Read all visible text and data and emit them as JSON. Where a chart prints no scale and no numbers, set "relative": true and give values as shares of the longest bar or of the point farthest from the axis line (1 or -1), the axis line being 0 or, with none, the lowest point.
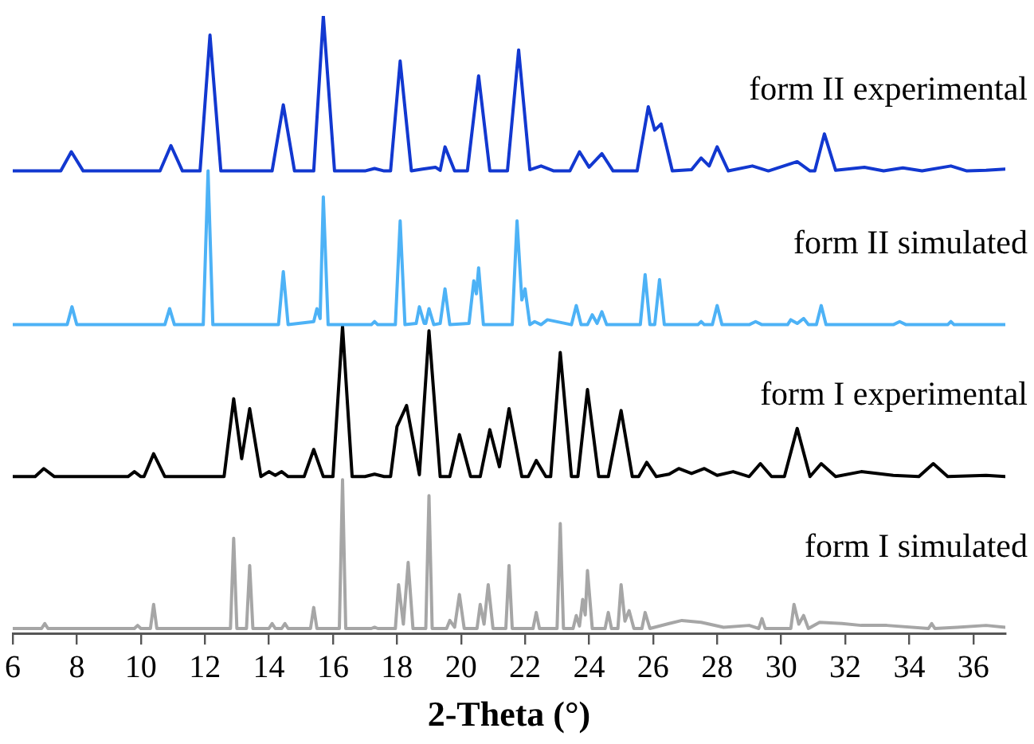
{
  "chart_data": {
    "type": "line",
    "relative": true,
    "xlabel": "2-Theta (°)",
    "xlim": [
      6,
      37
    ],
    "xticks": [
      6,
      8,
      10,
      12,
      14,
      16,
      18,
      20,
      22,
      24,
      26,
      28,
      30,
      32,
      34,
      36
    ],
    "grid": false,
    "legend": false,
    "marker": "none",
    "line_style": "solid",
    "series": [
      {
        "name": "form II experimental",
        "color": "#1238d0",
        "x": [
          6.0,
          7.5,
          7.83,
          8.2,
          10.6,
          10.94,
          11.3,
          11.85,
          12.16,
          12.5,
          14.1,
          14.45,
          14.8,
          15.4,
          15.7,
          16.05,
          17.0,
          17.3,
          17.6,
          17.8,
          18.1,
          18.45,
          18.8,
          19.2,
          19.35,
          19.5,
          19.8,
          20.2,
          20.55,
          20.9,
          21.45,
          21.8,
          22.15,
          22.5,
          22.9,
          23.4,
          23.7,
          24.0,
          24.4,
          24.75,
          25.5,
          25.85,
          26.05,
          26.25,
          26.6,
          27.2,
          27.5,
          27.75,
          28.0,
          28.35,
          29.1,
          29.6,
          30.5,
          30.9,
          31.05,
          31.35,
          31.7,
          32.6,
          33.2,
          33.8,
          34.4,
          35.3,
          35.8,
          36.4,
          37.0
        ],
        "values": [
          0.749,
          0.749,
          0.78,
          0.749,
          0.749,
          0.79,
          0.749,
          0.749,
          0.969,
          0.749,
          0.749,
          0.856,
          0.749,
          0.749,
          1.0,
          0.749,
          0.749,
          0.753,
          0.749,
          0.749,
          0.927,
          0.749,
          0.752,
          0.755,
          0.75,
          0.788,
          0.749,
          0.749,
          0.903,
          0.749,
          0.749,
          0.945,
          0.751,
          0.757,
          0.749,
          0.749,
          0.78,
          0.755,
          0.777,
          0.749,
          0.749,
          0.853,
          0.815,
          0.825,
          0.749,
          0.751,
          0.77,
          0.757,
          0.788,
          0.749,
          0.757,
          0.749,
          0.764,
          0.749,
          0.749,
          0.809,
          0.75,
          0.755,
          0.749,
          0.754,
          0.749,
          0.757,
          0.749,
          0.75,
          0.752
        ]
      },
      {
        "name": "form II simulated",
        "color": "#4db2f6",
        "x": [
          6.0,
          7.7,
          7.85,
          8.0,
          10.75,
          10.9,
          11.05,
          11.95,
          12.1,
          12.25,
          14.3,
          14.45,
          14.6,
          15.4,
          15.5,
          15.6,
          15.7,
          15.85,
          17.2,
          17.3,
          17.4,
          17.95,
          18.1,
          18.25,
          18.6,
          18.7,
          18.85,
          18.9,
          19.0,
          19.15,
          19.35,
          19.5,
          19.65,
          20.25,
          20.4,
          20.48,
          20.55,
          20.7,
          21.6,
          21.75,
          21.9,
          22.0,
          22.15,
          22.3,
          22.5,
          22.7,
          23.45,
          23.6,
          23.75,
          23.95,
          24.1,
          24.25,
          24.4,
          24.55,
          25.6,
          25.75,
          25.9,
          26.05,
          26.2,
          26.35,
          27.4,
          27.5,
          27.6,
          27.85,
          28.0,
          28.15,
          29.0,
          29.2,
          29.4,
          30.2,
          30.3,
          30.5,
          30.7,
          30.85,
          31.1,
          31.25,
          31.4,
          33.5,
          33.7,
          33.9,
          35.2,
          35.3,
          35.4,
          37.0
        ],
        "values": [
          0.5,
          0.5,
          0.529,
          0.5,
          0.5,
          0.526,
          0.5,
          0.5,
          0.749,
          0.5,
          0.5,
          0.586,
          0.5,
          0.505,
          0.526,
          0.51,
          0.707,
          0.5,
          0.5,
          0.505,
          0.5,
          0.5,
          0.668,
          0.5,
          0.502,
          0.529,
          0.502,
          0.502,
          0.526,
          0.5,
          0.502,
          0.558,
          0.5,
          0.502,
          0.571,
          0.55,
          0.592,
          0.5,
          0.5,
          0.668,
          0.54,
          0.558,
          0.5,
          0.505,
          0.5,
          0.508,
          0.5,
          0.531,
          0.5,
          0.5,
          0.516,
          0.502,
          0.521,
          0.5,
          0.5,
          0.581,
          0.5,
          0.5,
          0.573,
          0.5,
          0.5,
          0.505,
          0.5,
          0.5,
          0.531,
          0.5,
          0.5,
          0.505,
          0.5,
          0.5,
          0.508,
          0.502,
          0.51,
          0.5,
          0.5,
          0.531,
          0.5,
          0.5,
          0.505,
          0.5,
          0.5,
          0.505,
          0.5,
          0.5
        ]
      },
      {
        "name": "form I experimental",
        "color": "#000000",
        "x": [
          6.0,
          6.7,
          6.97,
          7.3,
          9.6,
          9.8,
          10.0,
          10.1,
          10.4,
          10.75,
          12.6,
          12.9,
          13.15,
          13.4,
          13.75,
          14.0,
          14.2,
          14.4,
          14.6,
          15.1,
          15.4,
          15.7,
          16.0,
          16.3,
          16.6,
          17.0,
          17.3,
          17.6,
          17.8,
          18.0,
          18.3,
          18.7,
          19.0,
          19.35,
          19.65,
          19.95,
          20.3,
          20.6,
          20.9,
          21.2,
          21.5,
          21.9,
          22.1,
          22.35,
          22.65,
          22.8,
          23.1,
          23.45,
          23.65,
          23.95,
          24.3,
          24.6,
          25.0,
          25.35,
          25.55,
          25.8,
          26.1,
          26.5,
          26.8,
          27.2,
          27.6,
          28.0,
          28.5,
          29.0,
          29.35,
          29.7,
          30.1,
          30.5,
          30.9,
          31.25,
          31.7,
          32.5,
          33.5,
          34.3,
          34.75,
          35.2,
          36.4,
          37.0
        ],
        "values": [
          0.254,
          0.254,
          0.267,
          0.254,
          0.254,
          0.262,
          0.254,
          0.254,
          0.291,
          0.254,
          0.254,
          0.38,
          0.283,
          0.364,
          0.254,
          0.262,
          0.256,
          0.262,
          0.254,
          0.254,
          0.298,
          0.254,
          0.254,
          0.497,
          0.254,
          0.254,
          0.258,
          0.254,
          0.254,
          0.335,
          0.369,
          0.257,
          0.49,
          0.254,
          0.254,
          0.322,
          0.254,
          0.254,
          0.33,
          0.27,
          0.364,
          0.254,
          0.254,
          0.28,
          0.254,
          0.254,
          0.455,
          0.254,
          0.254,
          0.395,
          0.254,
          0.254,
          0.361,
          0.254,
          0.254,
          0.277,
          0.254,
          0.258,
          0.267,
          0.259,
          0.267,
          0.256,
          0.262,
          0.254,
          0.275,
          0.254,
          0.254,
          0.332,
          0.254,
          0.275,
          0.254,
          0.262,
          0.256,
          0.254,
          0.275,
          0.254,
          0.256,
          0.254
        ]
      },
      {
        "name": "form I simulated",
        "color": "#a6a6a6",
        "x": [
          6.0,
          6.9,
          7.0,
          7.1,
          9.8,
          9.9,
          10.0,
          10.3,
          10.4,
          10.5,
          12.8,
          12.9,
          13.0,
          13.3,
          13.4,
          13.5,
          14.0,
          14.1,
          14.2,
          14.4,
          14.5,
          14.6,
          15.3,
          15.4,
          15.5,
          16.2,
          16.3,
          16.4,
          17.2,
          17.3,
          17.4,
          17.95,
          18.05,
          18.2,
          18.35,
          18.5,
          18.9,
          19.0,
          19.1,
          19.55,
          19.65,
          19.8,
          19.95,
          20.1,
          20.5,
          20.6,
          20.72,
          20.85,
          21.0,
          21.4,
          21.5,
          21.6,
          22.25,
          22.35,
          22.45,
          23.0,
          23.1,
          23.2,
          23.5,
          23.6,
          23.7,
          23.8,
          23.88,
          23.95,
          24.1,
          24.5,
          24.6,
          24.7,
          24.9,
          25.0,
          25.12,
          25.25,
          25.4,
          25.65,
          25.75,
          25.9,
          26.5,
          26.9,
          27.5,
          28.2,
          29.0,
          29.3,
          29.4,
          29.5,
          30.3,
          30.4,
          30.55,
          30.7,
          30.85,
          31.2,
          31.9,
          32.5,
          33.3,
          34.6,
          34.7,
          34.8,
          35.5,
          36.4,
          37.0
        ],
        "values": [
          0.008,
          0.008,
          0.016,
          0.008,
          0.008,
          0.013,
          0.008,
          0.008,
          0.047,
          0.008,
          0.008,
          0.154,
          0.008,
          0.008,
          0.11,
          0.008,
          0.008,
          0.016,
          0.008,
          0.008,
          0.016,
          0.008,
          0.008,
          0.042,
          0.008,
          0.008,
          0.249,
          0.008,
          0.008,
          0.01,
          0.008,
          0.008,
          0.079,
          0.015,
          0.115,
          0.008,
          0.008,
          0.223,
          0.008,
          0.008,
          0.021,
          0.01,
          0.063,
          0.008,
          0.008,
          0.047,
          0.015,
          0.079,
          0.008,
          0.008,
          0.11,
          0.008,
          0.008,
          0.034,
          0.008,
          0.008,
          0.178,
          0.008,
          0.008,
          0.029,
          0.012,
          0.055,
          0.03,
          0.102,
          0.008,
          0.008,
          0.034,
          0.008,
          0.008,
          0.079,
          0.02,
          0.037,
          0.008,
          0.008,
          0.034,
          0.008,
          0.016,
          0.021,
          0.018,
          0.01,
          0.013,
          0.008,
          0.024,
          0.008,
          0.008,
          0.047,
          0.015,
          0.029,
          0.008,
          0.018,
          0.016,
          0.013,
          0.013,
          0.008,
          0.016,
          0.008,
          0.01,
          0.013,
          0.01
        ]
      }
    ]
  }
}
